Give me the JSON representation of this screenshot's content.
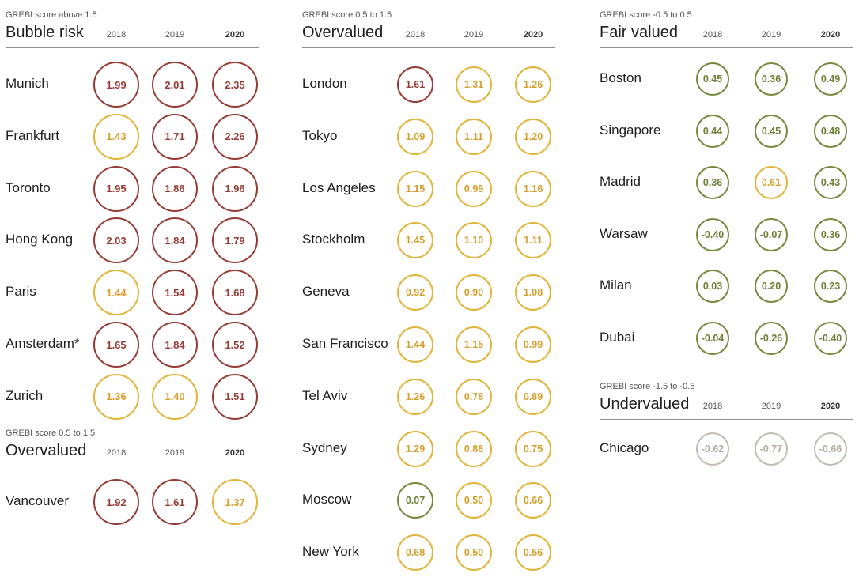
{
  "chart_data": {
    "type": "table",
    "years": [
      "2018",
      "2019",
      "2020"
    ],
    "colors": {
      "red": "#963b35",
      "yellow": "#e1b43a",
      "green": "#76893d",
      "grey": "#c3bcb4"
    },
    "sections": [
      {
        "id": "bubble-risk",
        "score_label": "GREBI score above 1.5",
        "title": "Bubble risk",
        "rows": [
          {
            "city": "Munich",
            "values": [
              1.99,
              2.01,
              2.35
            ],
            "labels": [
              "1.99",
              "2.01",
              "2.35"
            ]
          },
          {
            "city": "Frankfurt",
            "values": [
              1.43,
              1.71,
              2.26
            ],
            "labels": [
              "1.43",
              "1.71",
              "2.26"
            ]
          },
          {
            "city": "Toronto",
            "values": [
              1.95,
              1.86,
              1.96
            ],
            "labels": [
              "1.95",
              "1.86",
              "1.96"
            ]
          },
          {
            "city": "Hong Kong",
            "values": [
              2.03,
              1.84,
              1.79
            ],
            "labels": [
              "2.03",
              "1.84",
              "1.79"
            ]
          },
          {
            "city": "Paris",
            "values": [
              1.44,
              1.54,
              1.68
            ],
            "labels": [
              "1.44",
              "1.54",
              "1.68"
            ]
          },
          {
            "city": "Amsterdam*",
            "values": [
              1.65,
              1.84,
              1.52
            ],
            "labels": [
              "1.65",
              "1.84",
              "1.52"
            ]
          },
          {
            "city": "Zurich",
            "values": [
              1.36,
              1.4,
              1.51
            ],
            "labels": [
              "1.36",
              "1.40",
              "1.51"
            ]
          }
        ]
      },
      {
        "id": "overvalued-vancouver",
        "score_label": "GREBI score 0.5 to 1.5",
        "title": "Overvalued",
        "rows": [
          {
            "city": "Vancouver",
            "values": [
              1.92,
              1.61,
              1.37
            ],
            "labels": [
              "1.92",
              "1.61",
              "1.37"
            ]
          }
        ]
      },
      {
        "id": "overvalued",
        "score_label": "GREBI score 0.5 to 1.5",
        "title": "Overvalued",
        "rows": [
          {
            "city": "London",
            "values": [
              1.61,
              1.31,
              1.26
            ],
            "labels": [
              "1.61",
              "1.31",
              "1.26"
            ]
          },
          {
            "city": "Tokyo",
            "values": [
              1.09,
              1.11,
              1.2
            ],
            "labels": [
              "1.09",
              "1.11",
              "1.20"
            ]
          },
          {
            "city": "Los Angeles",
            "values": [
              1.15,
              0.99,
              1.16
            ],
            "labels": [
              "1.15",
              "0.99",
              "1.16"
            ]
          },
          {
            "city": "Stockholm",
            "values": [
              1.45,
              1.1,
              1.11
            ],
            "labels": [
              "1.45",
              "1.10",
              "1.11"
            ]
          },
          {
            "city": "Geneva",
            "values": [
              0.92,
              0.9,
              1.08
            ],
            "labels": [
              "0.92",
              "0.90",
              "1.08"
            ]
          },
          {
            "city": "San Francisco",
            "values": [
              1.44,
              1.15,
              0.99
            ],
            "labels": [
              "1.44",
              "1.15",
              "0.99"
            ]
          },
          {
            "city": "Tel Aviv",
            "values": [
              1.26,
              0.78,
              0.89
            ],
            "labels": [
              "1.26",
              "0.78",
              "0.89"
            ]
          },
          {
            "city": "Sydney",
            "values": [
              1.29,
              0.88,
              0.75
            ],
            "labels": [
              "1.29",
              "0.88",
              "0.75"
            ]
          },
          {
            "city": "Moscow",
            "values": [
              0.07,
              0.5,
              0.66
            ],
            "labels": [
              "0.07",
              "0.50",
              "0.66"
            ]
          },
          {
            "city": "New York",
            "values": [
              0.68,
              0.5,
              0.56
            ],
            "labels": [
              "0.68",
              "0.50",
              "0.56"
            ]
          }
        ]
      },
      {
        "id": "fair-valued",
        "score_label": "GREBI score -0.5 to 0.5",
        "title": "Fair valued",
        "rows": [
          {
            "city": "Boston",
            "values": [
              0.45,
              0.36,
              0.49
            ],
            "labels": [
              "0.45",
              "0.36",
              "0.49"
            ]
          },
          {
            "city": "Singapore",
            "values": [
              0.44,
              0.45,
              0.48
            ],
            "labels": [
              "0.44",
              "0.45",
              "0.48"
            ]
          },
          {
            "city": "Madrid",
            "values": [
              0.36,
              0.61,
              0.43
            ],
            "labels": [
              "0.36",
              "0.61",
              "0.43"
            ]
          },
          {
            "city": "Warsaw",
            "values": [
              -0.4,
              -0.07,
              0.36
            ],
            "labels": [
              "-0.40",
              "-0.07",
              "0.36"
            ]
          },
          {
            "city": "Milan",
            "values": [
              0.03,
              0.2,
              0.23
            ],
            "labels": [
              "0.03",
              "0.20",
              "0.23"
            ]
          },
          {
            "city": "Dubai",
            "values": [
              -0.04,
              -0.26,
              -0.4
            ],
            "labels": [
              "-0.04",
              "-0.26",
              "-0.40"
            ]
          }
        ]
      },
      {
        "id": "undervalued",
        "score_label": "GREBI score -1.5 to -0.5",
        "title": "Undervalued",
        "rows": [
          {
            "city": "Chicago",
            "values": [
              -0.62,
              -0.77,
              -0.66
            ],
            "labels": [
              "-0.62",
              "-0.77",
              "-0.66"
            ]
          }
        ]
      }
    ]
  }
}
